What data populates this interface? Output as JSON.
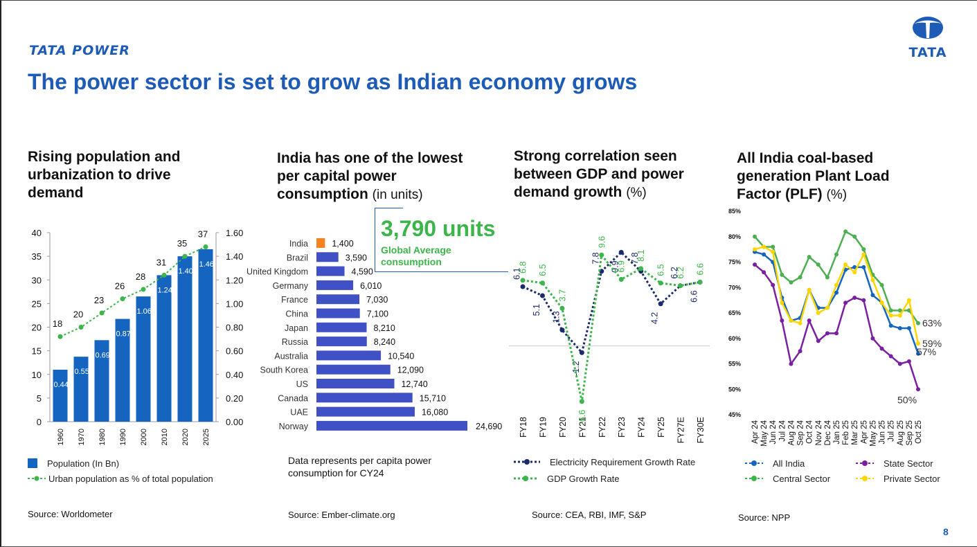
{
  "brand": "TATA POWER",
  "logo_word": "TATA",
  "title": "The power sector is set to grow as Indian economy grows",
  "page_number": "8",
  "colors": {
    "blue": "#1565c0",
    "green": "#3cb54a",
    "navy": "#1a2a6c",
    "orange": "#f58220",
    "purple": "#7b1fa2",
    "yellow": "#ffd600"
  },
  "panel1": {
    "heading": "Rising population and urbanization to drive demand",
    "legend_bar": "Population (In Bn)",
    "legend_line": "Urban population as % of total population",
    "source": "Source: Worldometer"
  },
  "panel2": {
    "heading": "India has one of the lowest per capital power consumption",
    "heading_unit": "(in units)",
    "callout_value": "3,790 units",
    "callout_label_1": "Global Average",
    "callout_label_2": "consumption",
    "note": "Data represents per capita power consumption for CY24",
    "source": "Source: Ember-climate.org"
  },
  "panel3": {
    "heading": "Strong correlation seen between GDP and power demand growth",
    "heading_unit": "(%)",
    "legend_elec": "Electricity Requirement Growth Rate",
    "legend_gdp": "GDP Growth Rate",
    "source": "Source: CEA, RBI, IMF, S&P"
  },
  "panel4": {
    "heading": "All India coal-based generation Plant Load Factor (PLF)",
    "heading_unit": "(%)",
    "legend_all": "All India",
    "legend_central": "Central Sector",
    "legend_state": "State Sector",
    "legend_private": "Private Sector",
    "source": "Source: NPP"
  },
  "chart_data": [
    {
      "type": "bar",
      "title": "Rising population and urbanization to drive demand",
      "categories": [
        "1960",
        "1970",
        "1980",
        "1990",
        "2000",
        "2010",
        "2020",
        "2025"
      ],
      "series": [
        {
          "name": "Population (In Bn)",
          "axis": "right",
          "values": [
            0.44,
            0.55,
            0.69,
            0.87,
            1.06,
            1.24,
            1.4,
            1.46
          ]
        },
        {
          "name": "Urban population as % of total population",
          "type": "line",
          "axis": "left",
          "values": [
            18,
            20,
            23,
            26,
            28,
            31,
            35,
            37
          ]
        }
      ],
      "y_left": {
        "ylim": [
          0,
          40
        ],
        "ticks": [
          "0",
          "5",
          "10",
          "15",
          "20",
          "25",
          "30",
          "35",
          "40"
        ]
      },
      "y_right": {
        "ylim": [
          0,
          1.6
        ],
        "ticks": [
          "0.00",
          "0.20",
          "0.40",
          "0.60",
          "0.80",
          "1.00",
          "1.20",
          "1.40",
          "1.60"
        ]
      }
    },
    {
      "type": "bar",
      "orientation": "horizontal",
      "title": "India has one of the lowest per capital power consumption (in units)",
      "categories": [
        "India",
        "Brazil",
        "United Kingdom",
        "Germany",
        "France",
        "China",
        "Japan",
        "Russia",
        "Australia",
        "South Korea",
        "US",
        "Canada",
        "UAE",
        "Norway"
      ],
      "values": [
        1400,
        3590,
        4590,
        6010,
        7030,
        7100,
        8210,
        8240,
        10540,
        12090,
        12740,
        15710,
        16080,
        24690
      ],
      "value_labels": [
        "1,400",
        "3,590",
        "4,590",
        "6,010",
        "7,030",
        "7,100",
        "8,210",
        "8,240",
        "10,540",
        "12,090",
        "12,740",
        "15,710",
        "16,080",
        "24,690"
      ],
      "reference": {
        "value": 3790,
        "label": "3,790 units"
      },
      "xlim": [
        0,
        24690
      ]
    },
    {
      "type": "line",
      "title": "Strong correlation seen between GDP and power demand growth (%)",
      "categories": [
        "FY18",
        "FY19",
        "FY20",
        "FY21",
        "FY22",
        "FY23",
        "FY24",
        "FY25",
        "FY27E",
        "FY30E"
      ],
      "series": [
        {
          "name": "Electricity Requirement Growth Rate",
          "values": [
            6.1,
            5.1,
            1.3,
            -1.2,
            7.8,
            9.9,
            7.8,
            4.2,
            6.2,
            6.6
          ]
        },
        {
          "name": "GDP Growth Rate",
          "values": [
            6.8,
            6.5,
            3.7,
            -6.6,
            9.6,
            6.9,
            8.1,
            6.5,
            6.2,
            6.6
          ]
        }
      ],
      "ylim": [
        -7,
        11
      ]
    },
    {
      "type": "line",
      "title": "All India coal-based generation Plant Load Factor (PLF) (%)",
      "categories": [
        "Apr 24",
        "May 24",
        "Jun 24",
        "Jul 24",
        "Aug 24",
        "Sep 24",
        "Oct 24",
        "Nov 24",
        "Dec 24",
        "Jan 25",
        "Feb 25",
        "Mar 25",
        "Apr 25",
        "May 25",
        "Jun 25",
        "Jul 25",
        "Aug 25",
        "Sep 25",
        "Oct 25"
      ],
      "y_ticks": [
        "45%",
        "50%",
        "55%",
        "60%",
        "65%",
        "70%",
        "75%",
        "80%",
        "85%"
      ],
      "ylim": [
        45,
        85
      ],
      "series": [
        {
          "name": "All India",
          "values": [
            77,
            76.5,
            75,
            68,
            63.5,
            64,
            69.5,
            66,
            66,
            69,
            73.5,
            74,
            74,
            68.5,
            67,
            62.5,
            62,
            62,
            57
          ]
        },
        {
          "name": "Central Sector",
          "values": [
            80,
            78,
            78,
            72.5,
            71,
            72,
            76,
            74.5,
            72,
            76.5,
            81,
            80,
            77.5,
            72.5,
            70.5,
            65.5,
            65.5,
            65.5,
            63
          ]
        },
        {
          "name": "State Sector",
          "values": [
            74.5,
            73,
            70.5,
            63.5,
            55,
            57.5,
            63.5,
            59.5,
            61,
            61,
            67,
            68,
            67.5,
            60,
            58,
            56.5,
            55,
            55.5,
            50
          ]
        },
        {
          "name": "Private Sector",
          "values": [
            77.5,
            78,
            77,
            67,
            63.5,
            63,
            69.5,
            65,
            66,
            70.5,
            74.5,
            73,
            76.5,
            71.5,
            67,
            64.5,
            64.5,
            67.5,
            59
          ]
        }
      ],
      "end_labels": [
        "63%",
        "59%",
        "57%",
        "50%"
      ]
    }
  ]
}
